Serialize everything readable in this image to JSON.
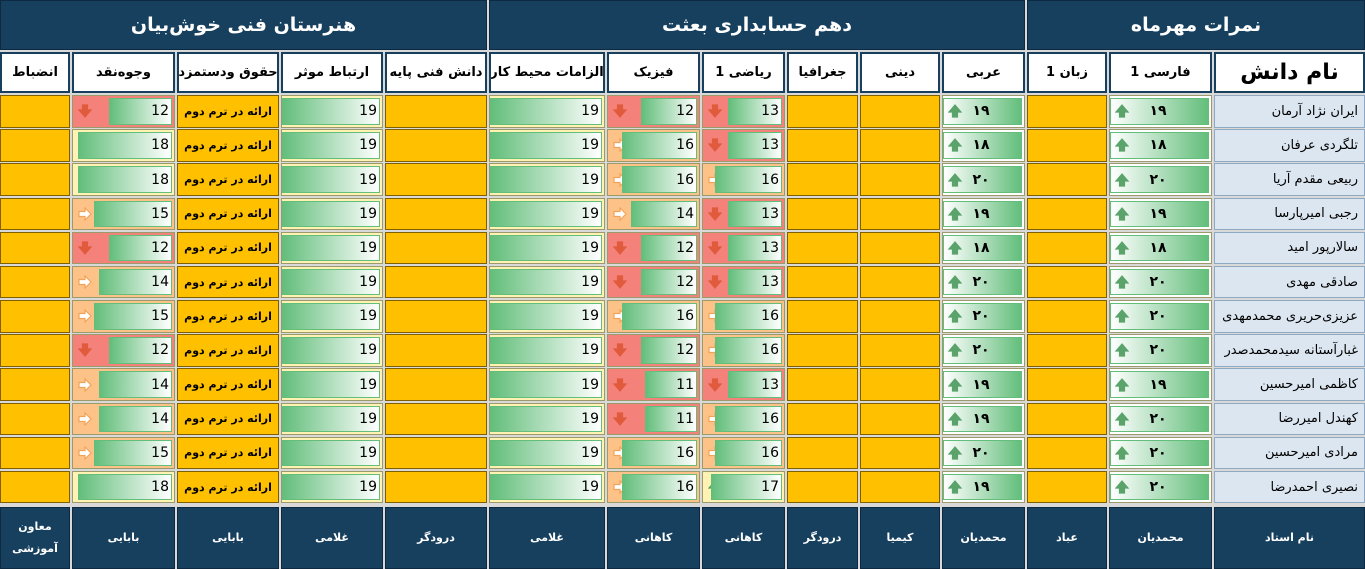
{
  "header": {
    "groups": [
      "نمرات مهرماه",
      "دهم حسابداری بعثت",
      "هنرستان فنی خوش‌بیان"
    ],
    "columns": [
      "نام دانش",
      "فارسی 1",
      "زبان 1",
      "عربی",
      "دینی",
      "جغرافیا",
      "ریاضی 1",
      "فیزیک",
      "الزامات محیط کار",
      "دانش فنی پایه",
      "ارتباط موثر",
      "حقوق ودستمزد",
      "وجوه‌نقد",
      "انضباط"
    ]
  },
  "rows": [
    {
      "name": "ایران نژاد آرمان",
      "farsi": "۱۹",
      "arabi": "۱۹",
      "riazi": 13,
      "fizik": 12,
      "elzamat": 19,
      "ertebat": 19,
      "hoghugh": "ارائه در ترم دوم",
      "vojuh": 12
    },
    {
      "name": "تلگردی عرفان",
      "farsi": "۱۸",
      "arabi": "۱۸",
      "riazi": 13,
      "fizik": 16,
      "elzamat": 19,
      "ertebat": 19,
      "hoghugh": "ارائه در ترم دوم",
      "vojuh": 18
    },
    {
      "name": "ربیعی مقدم آریا",
      "farsi": "۲۰",
      "arabi": "۲۰",
      "riazi": 16,
      "fizik": 16,
      "elzamat": 19,
      "ertebat": 19,
      "hoghugh": "ارائه در ترم دوم",
      "vojuh": 18
    },
    {
      "name": "رجبی امیرپارسا",
      "farsi": "۱۹",
      "arabi": "۱۹",
      "riazi": 13,
      "fizik": 14,
      "elzamat": 19,
      "ertebat": 19,
      "hoghugh": "ارائه در ترم دوم",
      "vojuh": 15
    },
    {
      "name": "سالارپور امید",
      "farsi": "۱۸",
      "arabi": "۱۸",
      "riazi": 13,
      "fizik": 12,
      "elzamat": 19,
      "ertebat": 19,
      "hoghugh": "ارائه در ترم دوم",
      "vojuh": 12
    },
    {
      "name": "صادقی مهدی",
      "farsi": "۲۰",
      "arabi": "۲۰",
      "riazi": 13,
      "fizik": 12,
      "elzamat": 19,
      "ertebat": 19,
      "hoghugh": "ارائه در ترم دوم",
      "vojuh": 14
    },
    {
      "name": "عزیزی‌حریری محمدمهدی",
      "farsi": "۲۰",
      "arabi": "۲۰",
      "riazi": 16,
      "fizik": 16,
      "elzamat": 19,
      "ertebat": 19,
      "hoghugh": "ارائه در ترم دوم",
      "vojuh": 15
    },
    {
      "name": "غبارآستانه سیدمحمدصدر",
      "farsi": "۲۰",
      "arabi": "۲۰",
      "riazi": 16,
      "fizik": 12,
      "elzamat": 19,
      "ertebat": 19,
      "hoghugh": "ارائه در ترم دوم",
      "vojuh": 12
    },
    {
      "name": "کاظمی امیرحسین",
      "farsi": "۱۹",
      "arabi": "۱۹",
      "riazi": 13,
      "fizik": 11,
      "elzamat": 19,
      "ertebat": 19,
      "hoghugh": "ارائه در ترم دوم",
      "vojuh": 14
    },
    {
      "name": "کهندل امیررضا",
      "farsi": "۲۰",
      "arabi": "۱۹",
      "riazi": 16,
      "fizik": 11,
      "elzamat": 19,
      "ertebat": 19,
      "hoghugh": "ارائه در ترم دوم",
      "vojuh": 14
    },
    {
      "name": "مرادی امیرحسین",
      "farsi": "۲۰",
      "arabi": "۲۰",
      "riazi": 16,
      "fizik": 16,
      "elzamat": 19,
      "ertebat": 19,
      "hoghugh": "ارائه در ترم دوم",
      "vojuh": 15
    },
    {
      "name": "نصیری احمدرضا",
      "farsi": "۲۰",
      "arabi": "۱۹",
      "riazi": 17,
      "fizik": 16,
      "elzamat": 19,
      "ertebat": 19,
      "hoghugh": "ارائه در ترم دوم",
      "vojuh": 18
    }
  ],
  "teachers": [
    "نام استاد",
    "محمدیان",
    "عباد",
    "محمدیان",
    "کیمیا",
    "درودگر",
    "کاهانی",
    "کاهانی",
    "غلامی",
    "درودگر",
    "غلامی",
    "بابایی",
    "بابایی",
    "معاون آموزشی"
  ]
}
